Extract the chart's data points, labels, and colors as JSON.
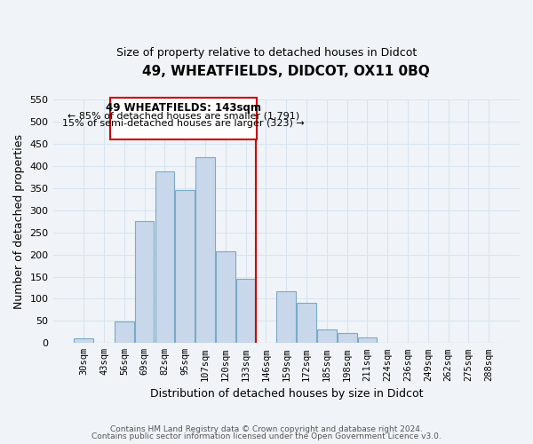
{
  "title": "49, WHEATFIELDS, DIDCOT, OX11 0BQ",
  "subtitle": "Size of property relative to detached houses in Didcot",
  "xlabel": "Distribution of detached houses by size in Didcot",
  "ylabel": "Number of detached properties",
  "bar_labels": [
    "30sqm",
    "43sqm",
    "56sqm",
    "69sqm",
    "82sqm",
    "95sqm",
    "107sqm",
    "120sqm",
    "133sqm",
    "146sqm",
    "159sqm",
    "172sqm",
    "185sqm",
    "198sqm",
    "211sqm",
    "224sqm",
    "236sqm",
    "249sqm",
    "262sqm",
    "275sqm",
    "288sqm"
  ],
  "bar_values": [
    10,
    0,
    48,
    275,
    388,
    345,
    420,
    208,
    145,
    0,
    118,
    90,
    30,
    22,
    12,
    0,
    0,
    0,
    0,
    0,
    0
  ],
  "bar_color": "#c8d8ea",
  "bar_edge_color": "#7aaac8",
  "vline_color": "#cc0000",
  "annotation_box_title": "49 WHEATFIELDS: 143sqm",
  "annotation_line1": "← 85% of detached houses are smaller (1,791)",
  "annotation_line2": "15% of semi-detached houses are larger (323) →",
  "annotation_box_edge_color": "#cc0000",
  "annotation_box_face_color": "#ffffff",
  "ylim": [
    0,
    550
  ],
  "yticks": [
    0,
    50,
    100,
    150,
    200,
    250,
    300,
    350,
    400,
    450,
    500,
    550
  ],
  "footer_line1": "Contains HM Land Registry data © Crown copyright and database right 2024.",
  "footer_line2": "Contains public sector information licensed under the Open Government Licence v3.0.",
  "bg_color": "#f0f4f8",
  "grid_color": "#d8e4f0"
}
